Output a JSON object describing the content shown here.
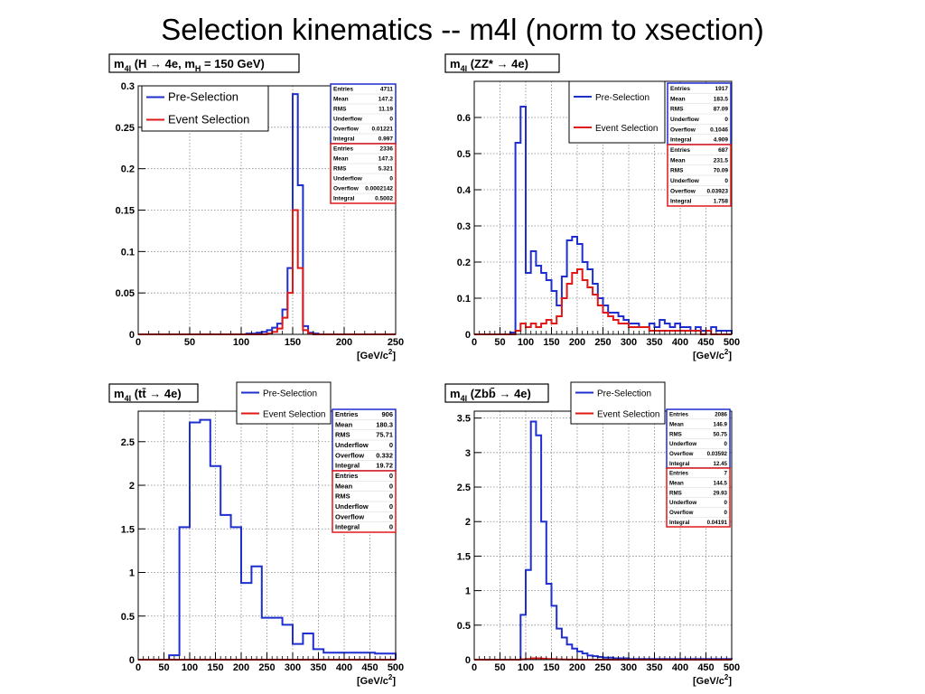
{
  "slide_title": "Selection kinematics -- m4l (norm to xsection)",
  "colors": {
    "pre": "#1f2fcf",
    "event": "#e11818",
    "frame": "#000000"
  },
  "chart_data": [
    {
      "type": "histogram",
      "title": "m4l (H → 4e, mH = 150 GeV)",
      "title_parts": {
        "m": "m",
        "sub": "4l",
        "rest1": " (H → 4e, m",
        "sub2": "H",
        "rest2": " = 150 GeV)"
      },
      "xlabel": "[GeV/c2]",
      "xlim": [
        0,
        250
      ],
      "ylim": [
        0,
        0.3
      ],
      "xticks": [
        0,
        50,
        100,
        150,
        200,
        250
      ],
      "yticks": [
        0,
        0.05,
        0.1,
        0.15,
        0.2,
        0.25,
        0.3
      ],
      "bin_width": 5,
      "legend": [
        "Pre-Selection",
        "Event Selection"
      ],
      "legend_pos": "top-left",
      "series": [
        {
          "name": "Pre-Selection",
          "values": [
            0,
            0,
            0,
            0,
            0,
            0,
            0,
            0,
            0,
            0,
            0,
            0,
            0,
            0,
            0,
            0,
            0,
            0,
            0,
            0,
            0,
            0.001,
            0.001,
            0.002,
            0.003,
            0.005,
            0.008,
            0.013,
            0.03,
            0.08,
            0.29,
            0.18,
            0.01,
            0.002,
            0.001,
            0,
            0,
            0,
            0,
            0,
            0,
            0,
            0,
            0,
            0,
            0,
            0,
            0,
            0,
            0
          ]
        },
        {
          "name": "Event Selection",
          "values": [
            0,
            0,
            0,
            0,
            0,
            0,
            0,
            0,
            0,
            0,
            0,
            0,
            0,
            0,
            0,
            0,
            0,
            0,
            0,
            0,
            0,
            0,
            0,
            0,
            0,
            0.001,
            0.003,
            0.007,
            0.02,
            0.05,
            0.15,
            0.08,
            0.005,
            0.001,
            0,
            0,
            0,
            0,
            0,
            0,
            0,
            0,
            0,
            0,
            0,
            0,
            0,
            0,
            0,
            0
          ]
        }
      ],
      "stats": [
        {
          "rows": [
            [
              "Entries",
              "4711"
            ],
            [
              "Mean",
              "147.2"
            ],
            [
              "RMS",
              "11.19"
            ],
            [
              "Underflow",
              "0"
            ],
            [
              "Overflow",
              "0.01221"
            ],
            [
              "Integral",
              "0.997"
            ]
          ]
        },
        {
          "rows": [
            [
              "Entries",
              "2336"
            ],
            [
              "Mean",
              "147.3"
            ],
            [
              "RMS",
              "5.321"
            ],
            [
              "Underflow",
              "0"
            ],
            [
              "Overflow",
              "0.0002142"
            ],
            [
              "Integral",
              "0.5002"
            ]
          ]
        }
      ]
    },
    {
      "type": "histogram",
      "title": "m4l (ZZ* → 4e)",
      "title_parts": {
        "m": "m",
        "sub": "4l",
        "rest1": " (ZZ* → 4e)",
        "sub2": "",
        "rest2": ""
      },
      "xlabel": "[GeV/c2]",
      "xlim": [
        0,
        500
      ],
      "ylim": [
        0,
        0.7
      ],
      "xticks": [
        0,
        50,
        100,
        150,
        200,
        250,
        300,
        350,
        400,
        450,
        500
      ],
      "yticks": [
        0,
        0.1,
        0.2,
        0.3,
        0.4,
        0.5,
        0.6
      ],
      "bin_width": 10,
      "legend": [
        "Pre-Selection",
        "Event Selection"
      ],
      "legend_pos": "top-right",
      "series": [
        {
          "name": "Pre-Selection",
          "values": [
            0,
            0,
            0,
            0,
            0,
            0,
            0,
            0.005,
            0.53,
            0.63,
            0.17,
            0.23,
            0.19,
            0.17,
            0.15,
            0.12,
            0.08,
            0.16,
            0.26,
            0.27,
            0.25,
            0.2,
            0.18,
            0.14,
            0.1,
            0.08,
            0.06,
            0.06,
            0.05,
            0.04,
            0.03,
            0.03,
            0.02,
            0.02,
            0.03,
            0.02,
            0.04,
            0.03,
            0.02,
            0.03,
            0.02,
            0.02,
            0.01,
            0.02,
            0.01,
            0.01,
            0.02,
            0.01,
            0.01,
            0.01
          ]
        },
        {
          "name": "Event Selection",
          "values": [
            0,
            0,
            0,
            0,
            0,
            0,
            0,
            0,
            0.01,
            0.03,
            0.02,
            0.03,
            0.02,
            0.03,
            0.04,
            0.03,
            0.05,
            0.1,
            0.14,
            0.17,
            0.18,
            0.15,
            0.13,
            0.11,
            0.08,
            0.06,
            0.05,
            0.04,
            0.03,
            0.03,
            0.02,
            0.02,
            0.02,
            0.02,
            0.01,
            0.01,
            0.01,
            0.01,
            0.01,
            0.01,
            0.01,
            0.01,
            0.01,
            0.01,
            0,
            0.01,
            0,
            0,
            0,
            0
          ]
        }
      ],
      "stats": [
        {
          "rows": [
            [
              "Entries",
              "1917"
            ],
            [
              "Mean",
              "183.5"
            ],
            [
              "RMS",
              "87.09"
            ],
            [
              "Underflow",
              "0"
            ],
            [
              "Overflow",
              "0.1046"
            ],
            [
              "Integral",
              "4.909"
            ]
          ]
        },
        {
          "rows": [
            [
              "Entries",
              "687"
            ],
            [
              "Mean",
              "231.5"
            ],
            [
              "RMS",
              "70.09"
            ],
            [
              "Underflow",
              "0"
            ],
            [
              "Overflow",
              "0.03923"
            ],
            [
              "Integral",
              "1.758"
            ]
          ]
        }
      ]
    },
    {
      "type": "histogram",
      "title": "m4l (tt̄ → 4e)",
      "title_parts": {
        "m": "m",
        "sub": "4l",
        "rest1": " (tt̄ → 4e)",
        "sub2": "",
        "rest2": ""
      },
      "xlabel": "[GeV/c2]",
      "xlim": [
        0,
        500
      ],
      "ylim": [
        0,
        2.85
      ],
      "xticks": [
        0,
        50,
        100,
        150,
        200,
        250,
        300,
        350,
        400,
        450,
        500
      ],
      "yticks": [
        0,
        0.5,
        1,
        1.5,
        2,
        2.5
      ],
      "bin_width": 20,
      "legend": [
        "Pre-Selection",
        "Event Selection"
      ],
      "legend_pos": "top-right",
      "series": [
        {
          "name": "Pre-Selection",
          "values": [
            0,
            0,
            0,
            0.05,
            1.52,
            2.72,
            2.75,
            2.22,
            1.66,
            1.52,
            0.88,
            1.07,
            0.48,
            0.48,
            0.4,
            0.18,
            0.3,
            0.12,
            0.08,
            0.08,
            0.08,
            0.08,
            0.08,
            0.07,
            0.07
          ]
        },
        {
          "name": "Event Selection",
          "values": [
            0,
            0,
            0,
            0,
            0,
            0,
            0,
            0,
            0,
            0,
            0,
            0,
            0,
            0,
            0,
            0,
            0,
            0,
            0,
            0,
            0,
            0,
            0,
            0,
            0
          ]
        }
      ],
      "stats": [
        {
          "rows": [
            [
              "Entries",
              "906"
            ],
            [
              "Mean",
              "180.3"
            ],
            [
              "RMS",
              "75.71"
            ],
            [
              "Underflow",
              "0"
            ],
            [
              "Overflow",
              "0.332"
            ],
            [
              "Integral",
              "19.72"
            ]
          ]
        },
        {
          "rows": [
            [
              "Entries",
              "0"
            ],
            [
              "Mean",
              "0"
            ],
            [
              "RMS",
              "0"
            ],
            [
              "Underflow",
              "0"
            ],
            [
              "Overflow",
              "0"
            ],
            [
              "Integral",
              "0"
            ]
          ]
        }
      ]
    },
    {
      "type": "histogram",
      "title": "m4l (Zbb̄ → 4e)",
      "title_parts": {
        "m": "m",
        "sub": "4l",
        "rest1": " (Zbb̄ → 4e)",
        "sub2": "",
        "rest2": ""
      },
      "xlabel": "[GeV/c2]",
      "xlim": [
        0,
        500
      ],
      "ylim": [
        0,
        3.6
      ],
      "xticks": [
        0,
        50,
        100,
        150,
        200,
        250,
        300,
        350,
        400,
        450,
        500
      ],
      "yticks": [
        0,
        0.5,
        1,
        1.5,
        2,
        2.5,
        3,
        3.5
      ],
      "bin_width": 10,
      "legend": [
        "Pre-Selection",
        "Event Selection"
      ],
      "legend_pos": "top-right",
      "series": [
        {
          "name": "Pre-Selection",
          "values": [
            0,
            0,
            0,
            0,
            0,
            0,
            0,
            0,
            0,
            0.65,
            1.3,
            3.45,
            3.25,
            2.0,
            1.1,
            0.78,
            0.45,
            0.32,
            0.22,
            0.16,
            0.12,
            0.09,
            0.06,
            0.05,
            0.04,
            0.03,
            0.03,
            0.02,
            0.02,
            0.02,
            0.01,
            0.01,
            0.01,
            0.01,
            0.01,
            0.01,
            0.01,
            0.01,
            0.01,
            0.01,
            0.01,
            0.01,
            0.01,
            0.01,
            0.01,
            0.01,
            0.01,
            0.01,
            0.01,
            0.01
          ]
        },
        {
          "name": "Event Selection",
          "values": [
            0,
            0,
            0,
            0,
            0,
            0,
            0,
            0,
            0,
            0.005,
            0.01,
            0.02,
            0.02,
            0.015,
            0.01,
            0.008,
            0.005,
            0.003,
            0.002,
            0.001,
            0,
            0,
            0,
            0,
            0,
            0,
            0,
            0,
            0,
            0,
            0,
            0,
            0,
            0,
            0,
            0,
            0,
            0,
            0,
            0,
            0,
            0,
            0,
            0,
            0,
            0,
            0,
            0,
            0,
            0
          ]
        }
      ],
      "stats": [
        {
          "rows": [
            [
              "Entries",
              "2086"
            ],
            [
              "Mean",
              "146.9"
            ],
            [
              "RMS",
              "50.75"
            ],
            [
              "Underflow",
              "0"
            ],
            [
              "Overflow",
              "0.03592"
            ],
            [
              "Integral",
              "12.45"
            ]
          ]
        },
        {
          "rows": [
            [
              "Entries",
              "7"
            ],
            [
              "Mean",
              "144.5"
            ],
            [
              "RMS",
              "29.93"
            ],
            [
              "Underflow",
              "0"
            ],
            [
              "Overflow",
              "0"
            ],
            [
              "Integral",
              "0.04191"
            ]
          ]
        }
      ]
    }
  ]
}
